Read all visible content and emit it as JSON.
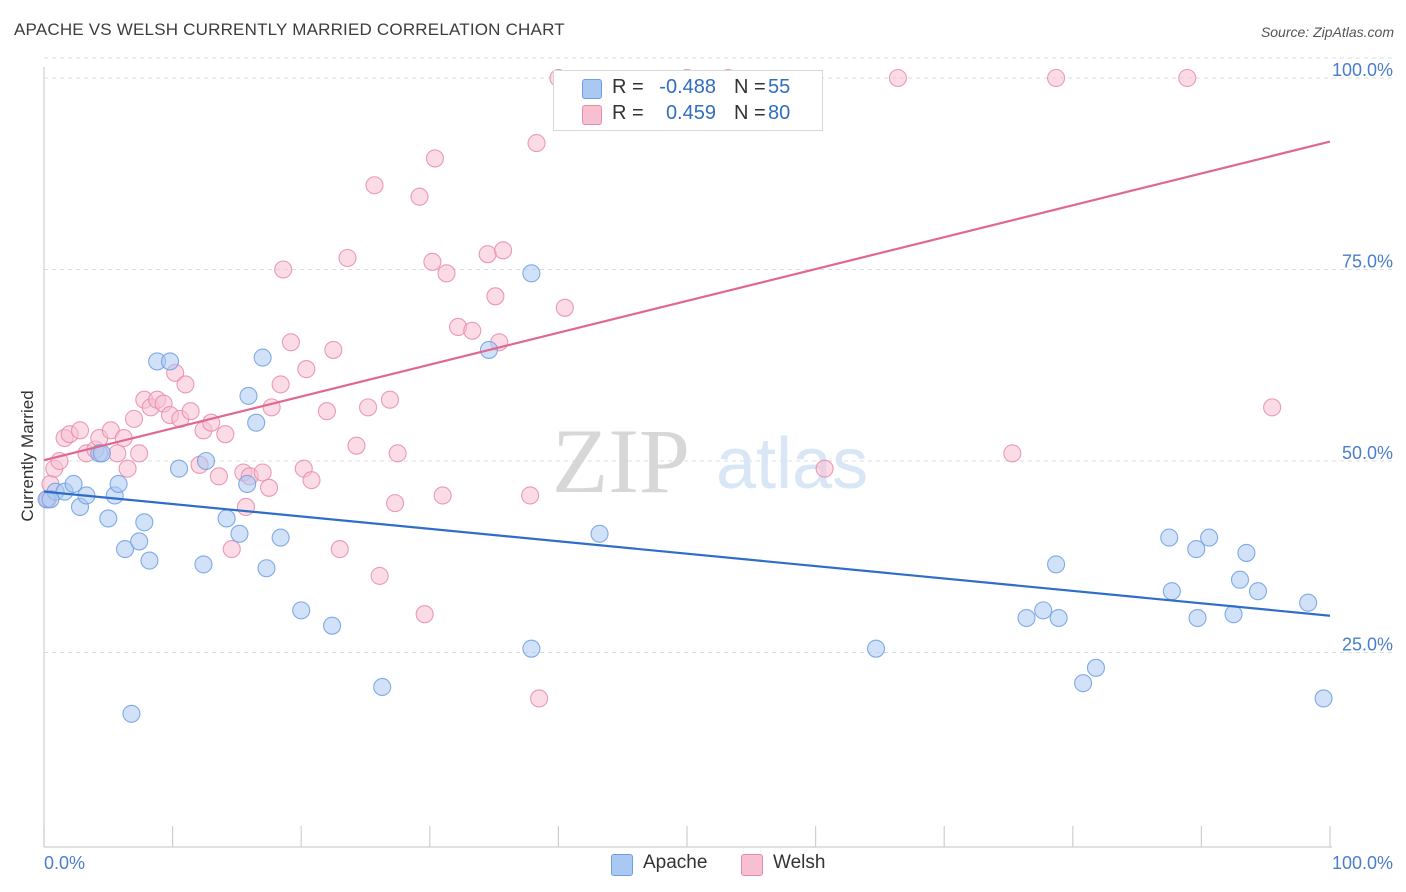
{
  "title": "APACHE VS WELSH CURRENTLY MARRIED CORRELATION CHART",
  "source": "Source: ZipAtlas.com",
  "watermark": {
    "zip": "ZIP",
    "atlas": "atlas"
  },
  "legend": {
    "rows": [
      {
        "r_label": "R =",
        "r_value": "-0.488",
        "n_label": "N =",
        "n_value": "55"
      },
      {
        "r_label": "R =",
        "r_value": "0.459",
        "n_label": "N =",
        "n_value": "80"
      }
    ],
    "bottom": [
      {
        "label": "Apache"
      },
      {
        "label": "Welsh"
      }
    ]
  },
  "colors": {
    "apache_fill": "#a9c8f2",
    "apache_stroke": "#6f9de0",
    "apache_line": "#2f6ec8",
    "welsh_fill": "#f7bfd2",
    "welsh_stroke": "#e88aaa",
    "welsh_line": "#e06890",
    "grid": "#dcdcdc",
    "axis_text": "#4a7ecb"
  },
  "chart_data": {
    "type": "scatter",
    "title": "APACHE VS WELSH CURRENTLY MARRIED CORRELATION CHART",
    "xlabel": "",
    "ylabel": "Currently Married",
    "xlim": [
      0,
      100
    ],
    "ylim": [
      0,
      105
    ],
    "x_tick_labels": [
      "0.0%",
      "100.0%"
    ],
    "y_ticks": [
      25,
      50,
      75,
      100
    ],
    "y_tick_labels": [
      "25.0%",
      "50.0%",
      "75.0%",
      "100.0%"
    ],
    "grid": true,
    "series": [
      {
        "name": "Apache",
        "r": -0.488,
        "n": 55,
        "trend": {
          "x": [
            0,
            100
          ],
          "y": [
            46,
            29.8
          ]
        },
        "points": [
          [
            0.2,
            45
          ],
          [
            0.9,
            46
          ],
          [
            1.6,
            46
          ],
          [
            2.3,
            47
          ],
          [
            2.8,
            44
          ],
          [
            3.3,
            45.5
          ],
          [
            4.3,
            51
          ],
          [
            4.5,
            51
          ],
          [
            5,
            42.5
          ],
          [
            5.5,
            45.5
          ],
          [
            5.8,
            47
          ],
          [
            6.3,
            38.5
          ],
          [
            6.8,
            17
          ],
          [
            7.4,
            39.5
          ],
          [
            7.8,
            42
          ],
          [
            8.2,
            37
          ],
          [
            8.8,
            63
          ],
          [
            9.8,
            63
          ],
          [
            10.5,
            49
          ],
          [
            12.4,
            36.5
          ],
          [
            12.6,
            50
          ],
          [
            14.2,
            42.5
          ],
          [
            15.2,
            40.5
          ],
          [
            15.8,
            47
          ],
          [
            15.9,
            58.5
          ],
          [
            16.5,
            55
          ],
          [
            17,
            63.5
          ],
          [
            17.3,
            36
          ],
          [
            18.4,
            40
          ],
          [
            20,
            30.5
          ],
          [
            22.4,
            28.5
          ],
          [
            26.3,
            20.5
          ],
          [
            34.6,
            64.5
          ],
          [
            37.9,
            25.5
          ],
          [
            37.9,
            74.5
          ],
          [
            43.2,
            40.5
          ],
          [
            64.7,
            25.5
          ],
          [
            78.7,
            36.5
          ],
          [
            76.4,
            29.5
          ],
          [
            77.7,
            30.5
          ],
          [
            78.9,
            29.5
          ],
          [
            80.8,
            21
          ],
          [
            81.8,
            23
          ],
          [
            87.5,
            40
          ],
          [
            87.7,
            33
          ],
          [
            89.7,
            29.5
          ],
          [
            89.6,
            38.5
          ],
          [
            90.6,
            40
          ],
          [
            92.5,
            30
          ],
          [
            93,
            34.5
          ],
          [
            93.5,
            38
          ],
          [
            94.4,
            33
          ],
          [
            98.3,
            31.5
          ],
          [
            99.5,
            19
          ],
          [
            0.5,
            45
          ]
        ]
      },
      {
        "name": "Welsh",
        "r": 0.459,
        "n": 80,
        "trend": {
          "x": [
            0,
            100
          ],
          "y": [
            50.1,
            91.7
          ]
        },
        "points": [
          [
            0.3,
            45
          ],
          [
            0.5,
            47
          ],
          [
            0.8,
            49
          ],
          [
            1.2,
            50
          ],
          [
            1.6,
            53
          ],
          [
            2,
            53.5
          ],
          [
            2.8,
            54
          ],
          [
            3.3,
            51
          ],
          [
            4,
            51.5
          ],
          [
            4.3,
            53
          ],
          [
            5.2,
            54
          ],
          [
            5.7,
            51
          ],
          [
            6.2,
            53
          ],
          [
            6.5,
            49
          ],
          [
            7,
            55.5
          ],
          [
            7.4,
            51
          ],
          [
            7.8,
            58
          ],
          [
            8.3,
            57
          ],
          [
            8.8,
            58
          ],
          [
            9.3,
            57.5
          ],
          [
            9.8,
            56
          ],
          [
            10.2,
            61.5
          ],
          [
            10.6,
            55.5
          ],
          [
            11,
            60
          ],
          [
            11.4,
            56.5
          ],
          [
            12.1,
            49.5
          ],
          [
            12.4,
            54
          ],
          [
            13,
            55
          ],
          [
            13.6,
            48
          ],
          [
            14.1,
            53.5
          ],
          [
            14.6,
            38.5
          ],
          [
            15.5,
            48.5
          ],
          [
            15.7,
            44
          ],
          [
            16,
            48
          ],
          [
            17,
            48.5
          ],
          [
            17.5,
            46.5
          ],
          [
            17.7,
            57
          ],
          [
            18.4,
            60
          ],
          [
            18.6,
            75
          ],
          [
            19.2,
            65.5
          ],
          [
            20.2,
            49
          ],
          [
            20.4,
            62
          ],
          [
            20.8,
            47.5
          ],
          [
            22,
            56.5
          ],
          [
            22.5,
            64.5
          ],
          [
            23,
            38.5
          ],
          [
            23.6,
            76.5
          ],
          [
            24.3,
            52
          ],
          [
            25.2,
            57
          ],
          [
            25.7,
            86
          ],
          [
            26.1,
            35
          ],
          [
            26.9,
            58
          ],
          [
            27.3,
            44.5
          ],
          [
            27.5,
            51
          ],
          [
            29.2,
            84.5
          ],
          [
            29.6,
            30
          ],
          [
            30.2,
            76
          ],
          [
            30.4,
            89.5
          ],
          [
            31.3,
            74.5
          ],
          [
            32.2,
            67.5
          ],
          [
            33.3,
            67
          ],
          [
            34.5,
            77
          ],
          [
            35.1,
            71.5
          ],
          [
            35.4,
            65.5
          ],
          [
            35.7,
            77.5
          ],
          [
            37.8,
            45.5
          ],
          [
            38.3,
            91.5
          ],
          [
            38.5,
            19
          ],
          [
            40,
            100
          ],
          [
            40.5,
            70
          ],
          [
            47.6,
            94.5
          ],
          [
            50,
            100
          ],
          [
            53.2,
            100
          ],
          [
            60.7,
            49
          ],
          [
            66.4,
            100
          ],
          [
            75.3,
            51
          ],
          [
            78.7,
            100
          ],
          [
            95.5,
            57
          ],
          [
            88.9,
            100
          ],
          [
            31,
            45.5
          ]
        ]
      }
    ]
  }
}
